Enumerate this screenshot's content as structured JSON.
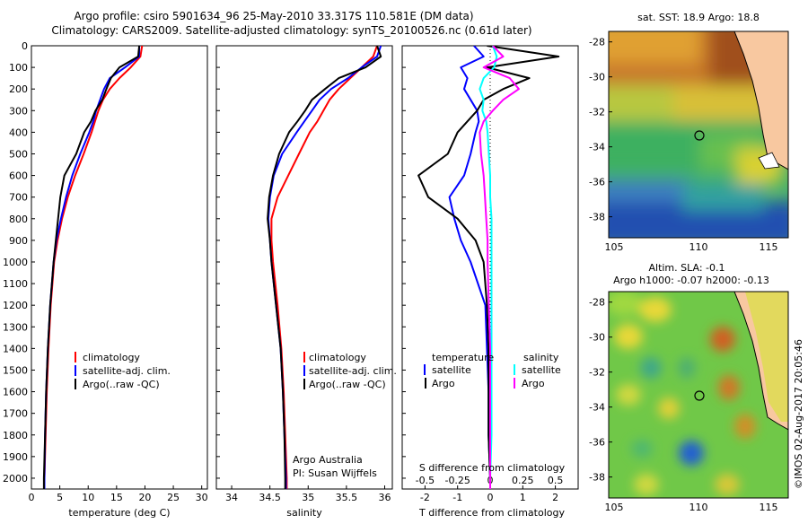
{
  "title_line1": "Argo profile: csiro 5901634_96 25-May-2010 33.317S 110.581E (DM data)",
  "title_line2": "Climatology: CARS2009. Satellite-adjusted climatology: synTS_20100526.nc (0.61d later)",
  "colors": {
    "clim": "#ff0000",
    "sat": "#0000ff",
    "argo": "#000000",
    "sal_sat": "#00ffff",
    "sal_argo": "#ff00ff"
  },
  "depth_ticks": [
    "0",
    "100",
    "200",
    "300",
    "400",
    "500",
    "600",
    "700",
    "800",
    "900",
    "1000",
    "1100",
    "1200",
    "1300",
    "1400",
    "1500",
    "1600",
    "1700",
    "1800",
    "1900",
    "2000"
  ],
  "panel_temp": {
    "xlabel": "temperature (deg C)",
    "xticks": [
      "0",
      "5",
      "10",
      "15",
      "20",
      "25",
      "30"
    ],
    "legend": [
      "climatology",
      "satellite-adj. clim.",
      "Argo(..raw -QC)"
    ]
  },
  "panel_sal": {
    "xlabel": "salinity",
    "xticks": [
      "34",
      "34.5",
      "35",
      "35.5",
      "36"
    ],
    "legend": [
      "climatology",
      "satellite-adj. clim.",
      "Argo(..raw -QC)"
    ],
    "note1": "Argo Australia",
    "note2": "PI: Susan Wijffels"
  },
  "panel_diff": {
    "xlabel": "T difference from climatology",
    "toplabel": "S difference from climatology",
    "xticks_T": [
      "-2",
      "-1",
      "0",
      "1",
      "2"
    ],
    "xticks_S": [
      "-0.5",
      "-0.25",
      "0",
      "0.25",
      "0.5"
    ],
    "legend_temp_title": "temperature",
    "legend_sal_title": "salinity",
    "legend_sat": "satellite",
    "legend_argo": "Argo"
  },
  "map_sst": {
    "title": "sat. SST: 18.9  Argo: 18.8",
    "xticks": [
      "105",
      "110",
      "115"
    ],
    "yticks": [
      "-28",
      "-30",
      "-32",
      "-34",
      "-36",
      "-38"
    ]
  },
  "map_sla": {
    "title1": "Altim. SLA: -0.1",
    "title2": "Argo h1000: -0.07 h2000: -0.13",
    "xticks": [
      "105",
      "110",
      "115"
    ],
    "yticks": [
      "-28",
      "-30",
      "-32",
      "-34",
      "-36",
      "-38"
    ]
  },
  "credit": "©IMOS 02-Aug-2017 20:05:46",
  "chart_data": {
    "type": "line",
    "depth": [
      0,
      50,
      100,
      150,
      200,
      250,
      300,
      350,
      400,
      500,
      600,
      700,
      800,
      900,
      1000,
      1200,
      1400,
      1600,
      1800,
      2000,
      2050
    ],
    "temperature": {
      "xlim": [
        0,
        31
      ],
      "ylim": [
        2050,
        0
      ],
      "series": [
        {
          "name": "climatology",
          "x": [
            19.5,
            19.2,
            17.5,
            15.5,
            13.8,
            12.6,
            11.8,
            11.2,
            10.6,
            9.2,
            7.7,
            6.4,
            5.4,
            4.6,
            4.0,
            3.4,
            3.0,
            2.7,
            2.5,
            2.3,
            2.3
          ]
        },
        {
          "name": "satellite-adj. clim.",
          "x": [
            19.0,
            19.0,
            16.5,
            13.8,
            12.8,
            12.1,
            11.4,
            10.9,
            10.2,
            8.6,
            7.2,
            6.1,
            5.2,
            4.4,
            3.9,
            3.3,
            2.9,
            2.6,
            2.4,
            2.3,
            2.3
          ]
        },
        {
          "name": "Argo(..raw -QC)",
          "x": [
            19.0,
            18.8,
            15.5,
            14.0,
            13.2,
            12.5,
            11.3,
            10.5,
            9.3,
            7.9,
            5.8,
            5.1,
            4.7,
            4.3,
            3.9,
            3.3,
            2.9,
            2.6,
            2.4,
            2.2,
            2.2
          ]
        }
      ]
    },
    "salinity": {
      "xlim": [
        33.8,
        36.1
      ],
      "ylim": [
        2050,
        0
      ],
      "series": [
        {
          "name": "climatology",
          "x": [
            35.9,
            35.85,
            35.7,
            35.55,
            35.4,
            35.28,
            35.2,
            35.12,
            35.02,
            34.88,
            34.74,
            34.6,
            34.52,
            34.52,
            34.54,
            34.6,
            34.65,
            34.68,
            34.7,
            34.72,
            34.72
          ]
        },
        {
          "name": "satellite-adj. clim.",
          "x": [
            35.95,
            35.9,
            35.7,
            35.52,
            35.3,
            35.15,
            35.05,
            34.95,
            34.85,
            34.66,
            34.55,
            34.5,
            34.48,
            34.5,
            34.52,
            34.58,
            34.64,
            34.67,
            34.69,
            34.71,
            34.71
          ]
        },
        {
          "name": "Argo(..raw -QC)",
          "x": [
            35.9,
            35.95,
            35.75,
            35.4,
            35.22,
            35.05,
            34.96,
            34.86,
            34.75,
            34.62,
            34.54,
            34.49,
            34.47,
            34.5,
            34.52,
            34.58,
            34.64,
            34.67,
            34.69,
            34.7,
            34.7
          ]
        }
      ]
    },
    "differences": {
      "xlim_T": [
        -2.7,
        2.7
      ],
      "xlim_S": [
        -0.675,
        0.675
      ],
      "ylim": [
        2050,
        0
      ],
      "series": [
        {
          "name": "temperature satellite",
          "axis": "T",
          "x": [
            -0.5,
            -0.2,
            -0.9,
            -0.7,
            -0.8,
            -0.6,
            -0.4,
            -0.35,
            -0.45,
            -0.6,
            -0.8,
            -1.25,
            -1.1,
            -0.9,
            -0.6,
            -0.15,
            -0.1,
            -0.05,
            -0.05,
            0.0,
            0.0
          ]
        },
        {
          "name": "temperature Argo",
          "axis": "T",
          "x": [
            -0.1,
            2.1,
            -0.1,
            1.2,
            0.4,
            -0.2,
            -0.4,
            -0.7,
            -1.0,
            -1.3,
            -2.2,
            -1.9,
            -1.0,
            -0.45,
            -0.2,
            -0.1,
            -0.05,
            -0.05,
            -0.05,
            0.0,
            0.0
          ]
        },
        {
          "name": "salinity satellite",
          "axis": "S",
          "x": [
            0.02,
            0.05,
            0.03,
            -0.05,
            -0.08,
            -0.05,
            -0.06,
            -0.03,
            -0.02,
            -0.01,
            0.0,
            0.0,
            0.01,
            0.01,
            0.01,
            0.01,
            0.01,
            0.01,
            0.01,
            0.0,
            0.0
          ]
        },
        {
          "name": "salinity Argo",
          "axis": "S",
          "x": [
            0.02,
            0.1,
            -0.05,
            0.15,
            0.22,
            0.1,
            0.02,
            -0.05,
            -0.08,
            -0.07,
            -0.05,
            -0.04,
            -0.03,
            -0.02,
            -0.02,
            -0.01,
            0.0,
            0.0,
            0.0,
            0.0,
            0.0
          ]
        }
      ]
    }
  }
}
